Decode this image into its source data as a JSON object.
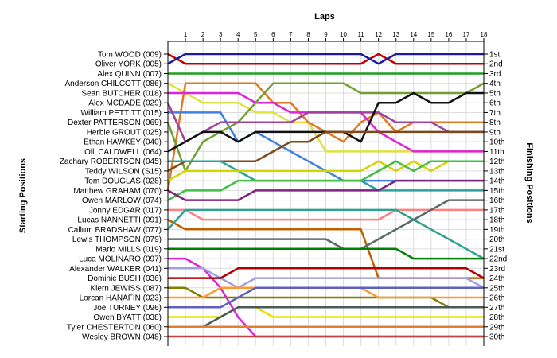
{
  "chart_data": {
    "type": "line",
    "title": "",
    "xlabel": "Laps",
    "ylabel_left": "Starting Positions",
    "ylabel_right": "Finishing Positions",
    "laps": [
      1,
      2,
      3,
      4,
      5,
      6,
      7,
      8,
      9,
      10,
      11,
      12,
      13,
      14,
      15,
      16,
      17,
      18
    ],
    "xlim": [
      0,
      18
    ],
    "ylim": [
      1,
      30
    ],
    "grid": true,
    "starting_grid": [
      "Tom WOOD (009)",
      "Oliver YORK (005)",
      "Alex QUINN (007)",
      "Anderson CHILCOTT (086)",
      "Sean BUTCHER (018)",
      "Alex MCDADE (029)",
      "William PETTITT (015)",
      "Dexter PATTERSON (069)",
      "Herbie GROUT (025)",
      "Ethan HAWKEY (040)",
      "Olli CALDWELL (064)",
      "Zachary ROBERTSON (045)",
      "Teddy WILSON (S15)",
      "Tom DOUGLAS (028)",
      "Matthew GRAHAM (070)",
      "Owen MARLOW (074)",
      "Jonny EDGAR (017)",
      "Lucas NANNETTI (091)",
      "Callum BRADSHAW (077)",
      "Lewis THOMPSON (079)",
      "Mario MILLS (019)",
      "Luca MOLINARO (097)",
      "Alexander WALKER (041)",
      "Dominic BUSH (036)",
      "Kiern JEWISS (087)",
      "Lorcan HANAFIN (023)",
      "Joe TURNEY (096)",
      "Owen BYATT (038)",
      "Tyler CHESTERTON (060)",
      "Wesley BROWN (048)"
    ],
    "finishing_labels": [
      "1st",
      "2nd",
      "3rd",
      "4th",
      "5th",
      "6th",
      "7th",
      "8th",
      "9th",
      "10th",
      "11th",
      "12th",
      "13th",
      "14th",
      "15th",
      "16th",
      "17th",
      "18th",
      "19th",
      "20th",
      "21st",
      "22nd",
      "23rd",
      "24th",
      "25th",
      "26th",
      "27th",
      "28th",
      "29th",
      "30th"
    ],
    "series": [
      {
        "color": "#c00000",
        "positions": [
          1,
          2,
          2,
          2,
          2,
          2,
          2,
          2,
          2,
          2,
          2,
          2,
          1,
          2,
          2,
          2,
          2,
          2,
          2
        ]
      },
      {
        "color": "#1a1aa0",
        "positions": [
          2,
          1,
          1,
          1,
          1,
          1,
          1,
          1,
          1,
          1,
          1,
          1,
          2,
          1,
          1,
          1,
          1,
          1,
          1
        ]
      },
      {
        "color": "#1f9e1f",
        "positions": [
          3,
          3,
          3,
          3,
          3,
          3,
          3,
          3,
          3,
          3,
          3,
          3,
          3,
          3,
          3,
          3,
          3,
          3,
          3
        ]
      },
      {
        "color": "#e0e040",
        "positions": [
          4,
          5,
          6,
          6,
          6,
          7,
          7,
          8,
          8,
          11,
          11,
          11,
          11,
          11,
          11,
          11,
          11,
          11,
          11
        ]
      },
      {
        "color": "#e07820",
        "positions": [
          15,
          4,
          4,
          4,
          4,
          4,
          6,
          6,
          8,
          9,
          10,
          8,
          7,
          9,
          8,
          8,
          8,
          8,
          8
        ]
      },
      {
        "color": "#dd22dd",
        "positions": [
          5,
          5,
          5,
          5,
          5,
          6,
          6,
          7,
          7,
          7,
          7,
          7,
          9,
          10,
          11,
          11,
          11,
          11,
          11
        ]
      },
      {
        "color": "#4080e0",
        "positions": [
          7,
          7,
          7,
          7,
          10,
          9,
          10,
          11,
          12,
          13,
          14,
          14,
          14,
          14,
          14,
          14,
          14,
          14,
          14
        ]
      },
      {
        "color": "#70a030",
        "positions": [
          8,
          13,
          10,
          9,
          8,
          6,
          4,
          4,
          4,
          4,
          4,
          5,
          5,
          5,
          5,
          5,
          5,
          5,
          4
        ]
      },
      {
        "color": "#a040a0",
        "positions": [
          6,
          10,
          9,
          8,
          8,
          8,
          8,
          8,
          7,
          7,
          7,
          7,
          7,
          8,
          8,
          8,
          9,
          9,
          9
        ]
      },
      {
        "color": "#111111",
        "positions": [
          11,
          10,
          9,
          9,
          10,
          9,
          9,
          9,
          9,
          9,
          9,
          10,
          6,
          6,
          5,
          6,
          6,
          5,
          5
        ]
      },
      {
        "color": "#7a4a1a",
        "positions": [
          13,
          12,
          12,
          12,
          12,
          12,
          11,
          10,
          10,
          9,
          9,
          9,
          9,
          9,
          9,
          9,
          9,
          9,
          9
        ]
      },
      {
        "color": "#2aa0a0",
        "positions": [
          12,
          12,
          12,
          12,
          13,
          14,
          14,
          14,
          14,
          14,
          14,
          14,
          15,
          15,
          15,
          15,
          15,
          15,
          15
        ]
      },
      {
        "color": "#d4d400",
        "positions": [
          14,
          13,
          13,
          13,
          13,
          13,
          13,
          13,
          13,
          13,
          13,
          13,
          12,
          13,
          12,
          13,
          12,
          12,
          12
        ]
      },
      {
        "color": "#40c040",
        "positions": [
          16,
          15,
          15,
          15,
          14,
          14,
          14,
          14,
          14,
          14,
          14,
          14,
          13,
          12,
          13,
          12,
          12,
          12,
          12
        ]
      },
      {
        "color": "#802080",
        "positions": [
          15,
          16,
          16,
          16,
          16,
          15,
          15,
          15,
          15,
          15,
          15,
          15,
          15,
          14,
          14,
          14,
          14,
          14,
          14
        ]
      },
      {
        "color": "#ff8080",
        "positions": [
          17,
          17,
          18,
          18,
          18,
          18,
          18,
          18,
          18,
          18,
          18,
          18,
          18,
          17,
          17,
          17,
          17,
          17,
          17
        ]
      },
      {
        "color": "#c06000",
        "positions": [
          18,
          19,
          19,
          19,
          19,
          19,
          19,
          19,
          19,
          19,
          19,
          19,
          24,
          24,
          24,
          24,
          24,
          24,
          24
        ]
      },
      {
        "color": "#30a090",
        "positions": [
          19,
          17,
          17,
          17,
          17,
          17,
          17,
          17,
          17,
          17,
          17,
          17,
          17,
          17,
          18,
          19,
          20,
          21,
          22
        ]
      },
      {
        "color": "#5a6a6a",
        "positions": [
          20,
          20,
          20,
          20,
          20,
          20,
          20,
          20,
          20,
          20,
          21,
          21,
          20,
          19,
          18,
          17,
          16,
          16,
          16
        ]
      },
      {
        "color": "#008000",
        "positions": [
          21,
          21,
          21,
          21,
          21,
          21,
          21,
          21,
          21,
          21,
          21,
          21,
          21,
          21,
          22,
          22,
          22,
          22,
          22
        ]
      },
      {
        "color": "#dd22dd",
        "positions": [
          22,
          22,
          23,
          25,
          28,
          30,
          30,
          30,
          30,
          30,
          30,
          30,
          30,
          30,
          30,
          30,
          30,
          30,
          30
        ]
      },
      {
        "color": "#a0a0e0",
        "positions": [
          23,
          23,
          23,
          24,
          25,
          24,
          24,
          24,
          24,
          24,
          24,
          24,
          24,
          24,
          24,
          24,
          24,
          24,
          25
        ]
      },
      {
        "color": "#b00000",
        "positions": [
          24,
          24,
          24,
          24,
          23,
          23,
          23,
          23,
          23,
          23,
          23,
          23,
          23,
          23,
          23,
          23,
          23,
          23,
          24
        ]
      },
      {
        "color": "#808000",
        "positions": [
          25,
          25,
          26,
          26,
          26,
          26,
          26,
          26,
          26,
          26,
          26,
          26,
          26,
          26,
          26,
          26,
          27,
          27,
          27
        ]
      },
      {
        "color": "#ff9933",
        "positions": [
          26,
          26,
          26,
          25,
          25,
          25,
          25,
          25,
          25,
          25,
          25,
          25,
          26,
          26,
          26,
          26,
          26,
          26,
          26
        ]
      },
      {
        "color": "#6060c0",
        "positions": [
          27,
          27,
          27,
          27,
          26,
          25,
          25,
          25,
          25,
          25,
          25,
          25,
          25,
          25,
          25,
          25,
          25,
          25,
          25
        ]
      },
      {
        "color": "#e8e000",
        "positions": [
          28,
          28,
          28,
          28,
          27,
          27,
          28,
          28,
          28,
          28,
          28,
          28,
          28,
          28,
          28,
          28,
          28,
          28,
          28
        ]
      },
      {
        "color": "#4a5a5a",
        "positions": [
          29,
          29,
          29,
          28,
          27,
          27,
          27,
          27,
          27,
          27,
          27,
          27,
          27,
          27,
          27,
          27,
          27,
          27,
          27
        ]
      },
      {
        "color": "#e08030",
        "positions": [
          29,
          29,
          29,
          29,
          29,
          29,
          29,
          29,
          29,
          29,
          29,
          29,
          29,
          29,
          29,
          29,
          29,
          29,
          29
        ]
      },
      {
        "color": "#c04040",
        "positions": [
          30,
          30,
          30,
          30,
          30,
          30,
          30,
          30,
          30,
          30,
          30,
          30,
          30,
          30,
          30,
          30,
          30,
          30,
          30
        ]
      }
    ]
  }
}
